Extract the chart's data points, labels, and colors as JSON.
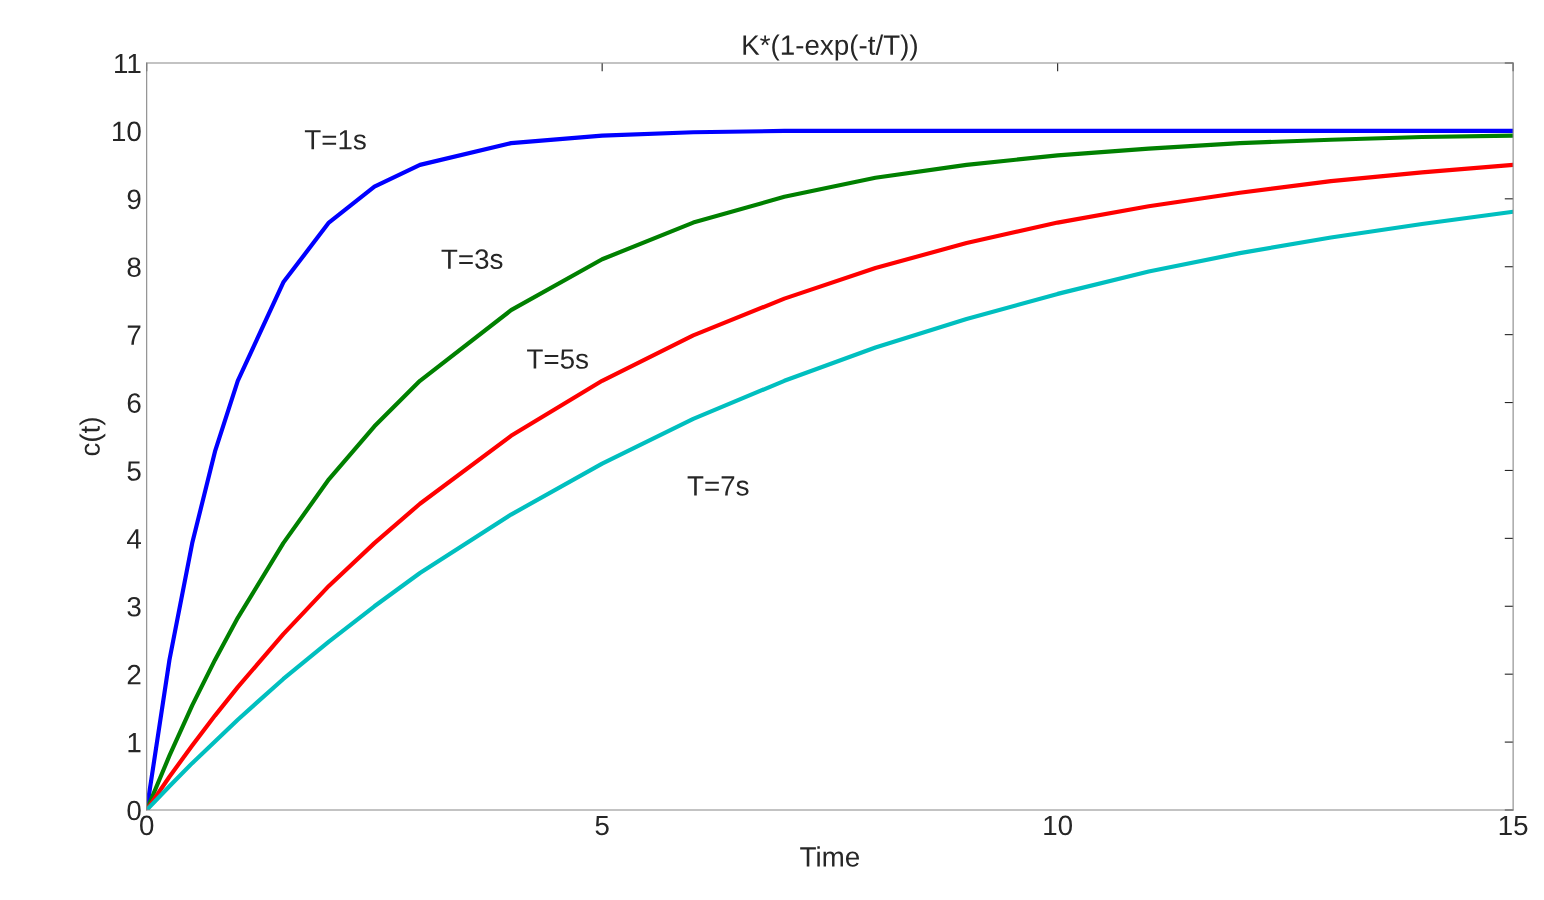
{
  "chart_data": {
    "type": "line",
    "title": "K*(1-exp(-t/T))",
    "xlabel": "Time",
    "ylabel": "c(t)",
    "x": [
      0,
      0.25,
      0.5,
      0.75,
      1,
      1.5,
      2,
      2.5,
      3,
      4,
      5,
      6,
      7,
      8,
      9,
      10,
      11,
      12,
      13,
      14,
      15
    ],
    "series": [
      {
        "name": "T=1s",
        "color": "#0000ff",
        "values": [
          0,
          2.21,
          3.93,
          5.28,
          6.32,
          7.77,
          8.65,
          9.18,
          9.5,
          9.82,
          9.93,
          9.98,
          10,
          10,
          10,
          10,
          10,
          10,
          10,
          10,
          10
        ]
      },
      {
        "name": "T=3s",
        "color": "#008000",
        "values": [
          0,
          0.8,
          1.54,
          2.21,
          2.83,
          3.93,
          4.87,
          5.65,
          6.32,
          7.36,
          8.11,
          8.65,
          9.03,
          9.31,
          9.5,
          9.64,
          9.74,
          9.82,
          9.87,
          9.91,
          9.93
        ]
      },
      {
        "name": "T=5s",
        "color": "#ff0000",
        "values": [
          0,
          0.49,
          0.95,
          1.39,
          1.81,
          2.59,
          3.3,
          3.93,
          4.51,
          5.51,
          6.32,
          6.99,
          7.53,
          7.98,
          8.35,
          8.65,
          8.89,
          9.09,
          9.26,
          9.39,
          9.5
        ]
      },
      {
        "name": "T=7s",
        "color": "#00bfbf",
        "values": [
          0,
          0.35,
          0.69,
          1.01,
          1.33,
          1.93,
          2.48,
          3.0,
          3.49,
          4.35,
          5.1,
          5.76,
          6.32,
          6.81,
          7.23,
          7.6,
          7.93,
          8.2,
          8.43,
          8.63,
          8.81
        ]
      }
    ],
    "xlim": [
      0,
      15
    ],
    "ylim": [
      0,
      11
    ],
    "xticks": [
      0,
      5,
      10,
      15
    ],
    "yticks": [
      0,
      1,
      2,
      3,
      4,
      5,
      6,
      7,
      8,
      9,
      10,
      11
    ],
    "grid": false,
    "marker": "none",
    "line_style": "solid"
  }
}
